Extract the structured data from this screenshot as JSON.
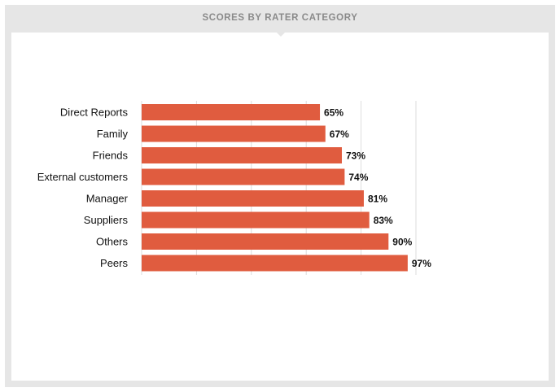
{
  "header": {
    "title": "SCORES BY RATER CATEGORY"
  },
  "colors": {
    "bar": "#e05c3f",
    "grid": "#dcdcdc",
    "frame": "#e6e6e6"
  },
  "chart_data": {
    "type": "bar",
    "orientation": "horizontal",
    "title": "SCORES BY RATER CATEGORY",
    "categories": [
      "Direct Reports",
      "Family",
      "Friends",
      "External customers",
      "Manager",
      "Suppliers",
      "Others",
      "Peers"
    ],
    "values": [
      65,
      67,
      73,
      74,
      81,
      83,
      90,
      97
    ],
    "value_labels": [
      "65%",
      "67%",
      "73%",
      "74%",
      "81%",
      "83%",
      "90%",
      "97%"
    ],
    "xlim": [
      0,
      100
    ],
    "grid": true,
    "legend": "none"
  }
}
